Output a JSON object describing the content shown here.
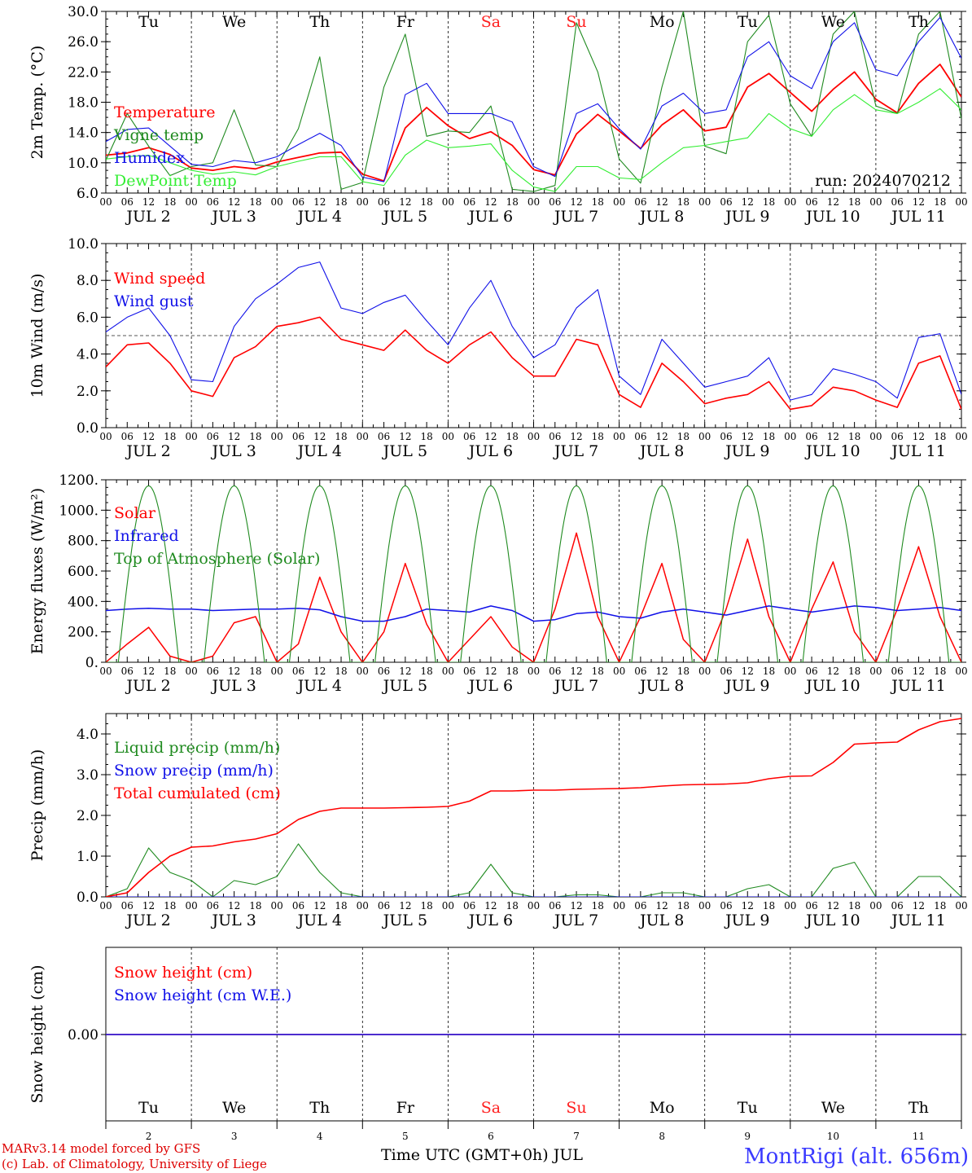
{
  "colors": {
    "red": "#ff0000",
    "green": "#1f8a1f",
    "lightgreen": "#33ee33",
    "blue": "#1010e8",
    "purple": "#8a2be2",
    "weekend": "#ff2020",
    "station": "#3a3aff",
    "credit": "#dd0000"
  },
  "x_axis": {
    "hour_labels": [
      "00",
      "06",
      "12",
      "18"
    ],
    "end_label": "00",
    "day_labels": [
      "JUL  2",
      "JUL  3",
      "JUL  4",
      "JUL  5",
      "JUL  6",
      "JUL  7",
      "JUL  8",
      "JUL  9",
      "JUL 10",
      "JUL 11"
    ],
    "weekdays": [
      "Tu",
      "We",
      "Th",
      "Fr",
      "Sa",
      "Su",
      "Mo",
      "Tu",
      "We",
      "Th"
    ],
    "weekend_flags": [
      false,
      false,
      false,
      false,
      true,
      true,
      false,
      false,
      false,
      false
    ],
    "bottom_day_numbers": [
      "2",
      "3",
      "4",
      "5",
      "6",
      "7",
      "8",
      "9",
      "10",
      "11"
    ],
    "xlabel": "Time UTC (GMT+0h) JUL"
  },
  "footer": {
    "credit_line1": "MARv3.14 model forced by GFS",
    "credit_line2": "(c) Lab. of Climatology, University of Liege",
    "station": "MontRigi (alt. 656m)"
  },
  "chart_data": [
    {
      "type": "line",
      "panel": "temperature",
      "ylabel": "2m Temp. (°C)",
      "ylim": [
        6,
        30
      ],
      "yticks": [
        "6.0",
        "10.0",
        "14.0",
        "18.0",
        "22.0",
        "26.0",
        "30.0"
      ],
      "ytick_values": [
        6,
        10,
        14,
        18,
        22,
        26,
        30
      ],
      "run_label": "run: 2024070212",
      "x_hours": [
        0,
        6,
        12,
        18,
        24,
        30,
        36,
        42,
        48,
        54,
        60,
        66,
        72,
        78,
        84,
        90,
        96,
        102,
        108,
        114,
        120,
        126,
        132,
        138,
        144,
        150,
        156,
        162,
        168,
        174,
        180,
        186,
        192,
        198,
        204,
        210,
        216,
        222,
        228,
        234,
        240
      ],
      "series": [
        {
          "name": "Temperature",
          "color": "red",
          "width": 1.8,
          "values": [
            11.0,
            11.3,
            12.0,
            11.1,
            9.3,
            9.0,
            9.5,
            9.2,
            10.1,
            10.7,
            11.3,
            11.4,
            8.5,
            7.6,
            14.6,
            17.3,
            14.9,
            13.2,
            14.1,
            12.3,
            9.1,
            8.4,
            13.8,
            16.4,
            14.2,
            11.9,
            15.0,
            17.0,
            14.2,
            14.7,
            20.0,
            21.8,
            19.3,
            16.8,
            19.7,
            22.0,
            18.4,
            16.6,
            20.5,
            23.0,
            18.7
          ]
        },
        {
          "name": "Vigne temp",
          "color": "green",
          "width": 1.1,
          "values": [
            10.3,
            16.5,
            12.2,
            8.3,
            9.5,
            10.0,
            17.0,
            9.7,
            9.5,
            14.5,
            24.0,
            6.5,
            7.4,
            20.0,
            27.0,
            13.5,
            14.2,
            14.0,
            17.5,
            6.5,
            6.2,
            7.0,
            28.5,
            22.0,
            10.5,
            7.3,
            20.0,
            30.0,
            12.2,
            11.2,
            26.0,
            29.5,
            17.8,
            13.5,
            27.0,
            30.0,
            17.5,
            16.5,
            27.0,
            30.0,
            15.8
          ]
        },
        {
          "name": "Humidex",
          "color": "blue",
          "width": 1.1,
          "values": [
            12.8,
            14.4,
            14.6,
            12.2,
            9.8,
            9.5,
            10.3,
            10.0,
            10.8,
            12.4,
            13.9,
            12.3,
            8.1,
            7.5,
            19.0,
            20.5,
            16.5,
            16.5,
            16.5,
            15.4,
            9.5,
            8.2,
            16.5,
            17.8,
            14.5,
            11.8,
            17.5,
            19.2,
            16.5,
            17.0,
            24.0,
            26.0,
            21.5,
            19.8,
            26.0,
            28.5,
            22.3,
            21.5,
            26.0,
            29.2,
            23.8
          ]
        },
        {
          "name": "DewPoint Temp",
          "color": "lightgreen",
          "width": 1.1,
          "values": [
            10.5,
            10.8,
            11.0,
            10.0,
            9.0,
            8.5,
            8.8,
            8.4,
            9.5,
            10.2,
            10.8,
            10.8,
            7.5,
            7.0,
            11.0,
            13.0,
            12.0,
            12.2,
            12.5,
            9.0,
            6.8,
            6.2,
            9.5,
            9.5,
            8.0,
            7.8,
            10.0,
            12.0,
            12.3,
            12.8,
            13.3,
            16.5,
            14.5,
            13.5,
            17.0,
            19.0,
            17.0,
            16.5,
            18.0,
            19.8,
            17.0
          ]
        }
      ]
    },
    {
      "type": "line",
      "panel": "wind",
      "ylabel": "10m Wind (m/s)",
      "ylim": [
        0,
        10
      ],
      "yticks": [
        "0.0",
        "2.0",
        "4.0",
        "6.0",
        "8.0",
        "10.0"
      ],
      "ytick_values": [
        0,
        2,
        4,
        6,
        8,
        10
      ],
      "reference_line": 5.0,
      "x_hours": [
        0,
        6,
        12,
        18,
        24,
        30,
        36,
        42,
        48,
        54,
        60,
        66,
        72,
        78,
        84,
        90,
        96,
        102,
        108,
        114,
        120,
        126,
        132,
        138,
        144,
        150,
        156,
        162,
        168,
        174,
        180,
        186,
        192,
        198,
        204,
        210,
        216,
        222,
        228,
        234,
        240
      ],
      "series": [
        {
          "name": "Wind speed",
          "color": "red",
          "width": 1.6,
          "values": [
            3.3,
            4.5,
            4.6,
            3.5,
            2.0,
            1.7,
            3.8,
            4.4,
            5.5,
            5.7,
            6.0,
            4.8,
            4.5,
            4.2,
            5.3,
            4.2,
            3.5,
            4.5,
            5.2,
            3.8,
            2.8,
            2.8,
            4.8,
            4.5,
            1.8,
            1.1,
            3.5,
            2.5,
            1.3,
            1.6,
            1.8,
            2.5,
            1.0,
            1.2,
            2.2,
            2.0,
            1.5,
            1.1,
            3.5,
            3.9,
            1.0
          ]
        },
        {
          "name": "Wind gust",
          "color": "blue",
          "width": 1.1,
          "values": [
            5.2,
            6.0,
            6.5,
            5.0,
            2.6,
            2.5,
            5.5,
            7.0,
            7.8,
            8.7,
            9.0,
            6.5,
            6.2,
            6.8,
            7.2,
            5.8,
            4.5,
            6.5,
            8.0,
            5.5,
            3.8,
            4.5,
            6.5,
            7.5,
            2.8,
            1.8,
            4.8,
            3.5,
            2.2,
            2.5,
            2.8,
            3.8,
            1.5,
            1.8,
            3.2,
            2.9,
            2.5,
            1.6,
            4.9,
            5.1,
            1.8
          ]
        }
      ]
    },
    {
      "type": "line",
      "panel": "energy",
      "ylabel": "Energy fluxes (W/m²)",
      "ylim": [
        0,
        1200
      ],
      "yticks": [
        "0.",
        "200.",
        "400.",
        "600.",
        "800.",
        "1000.",
        "1200."
      ],
      "ytick_values": [
        0,
        200,
        400,
        600,
        800,
        1000,
        1200
      ],
      "x_hours": [
        0,
        6,
        12,
        18,
        24,
        30,
        36,
        42,
        48,
        54,
        60,
        66,
        72,
        78,
        84,
        90,
        96,
        102,
        108,
        114,
        120,
        126,
        132,
        138,
        144,
        150,
        156,
        162,
        168,
        174,
        180,
        186,
        192,
        198,
        204,
        210,
        216,
        222,
        228,
        234,
        240
      ],
      "series": [
        {
          "name": "Solar",
          "color": "red",
          "width": 1.5,
          "values": [
            0,
            120,
            230,
            40,
            0,
            40,
            260,
            300,
            0,
            120,
            560,
            200,
            0,
            200,
            650,
            250,
            0,
            150,
            300,
            100,
            0,
            350,
            850,
            300,
            0,
            300,
            650,
            150,
            0,
            350,
            810,
            300,
            0,
            350,
            660,
            200,
            0,
            350,
            760,
            300,
            0
          ]
        },
        {
          "name": "Infrared",
          "color": "blue",
          "width": 1.5,
          "values": [
            340,
            350,
            355,
            350,
            350,
            340,
            345,
            350,
            350,
            355,
            345,
            300,
            270,
            270,
            300,
            350,
            340,
            330,
            370,
            340,
            270,
            280,
            320,
            330,
            300,
            290,
            330,
            350,
            330,
            310,
            340,
            370,
            350,
            330,
            350,
            370,
            360,
            340,
            350,
            360,
            340
          ]
        },
        {
          "name": "Top of Atmosphere (Solar)",
          "color": "green",
          "width": 1.1,
          "daily_peak": 1160,
          "sunrise_hour": 3.5,
          "sunset_hour": 20.5,
          "values": [
            0,
            700,
            1160,
            700,
            0,
            700,
            1160,
            700,
            0,
            700,
            1160,
            700,
            0,
            700,
            1160,
            700,
            0,
            700,
            1160,
            700,
            0,
            700,
            1160,
            700,
            0,
            700,
            1160,
            700,
            0,
            700,
            1160,
            700,
            0,
            700,
            1160,
            700,
            0,
            700,
            1160,
            700,
            0
          ]
        }
      ]
    },
    {
      "type": "line",
      "panel": "precip",
      "ylabel": "Precip (mm/h)",
      "ylim": [
        0,
        4.5
      ],
      "yticks": [
        "0.0",
        "1.0",
        "2.0",
        "3.0",
        "4.0"
      ],
      "ytick_values": [
        0,
        1,
        2,
        3,
        4
      ],
      "x_hours": [
        0,
        6,
        12,
        18,
        24,
        30,
        36,
        42,
        48,
        54,
        60,
        66,
        72,
        78,
        84,
        90,
        96,
        102,
        108,
        114,
        120,
        126,
        132,
        138,
        144,
        150,
        156,
        162,
        168,
        174,
        180,
        186,
        192,
        198,
        204,
        210,
        216,
        222,
        228,
        234,
        240
      ],
      "series": [
        {
          "name": "Liquid precip (mm/h)",
          "color": "green",
          "width": 1.1,
          "values": [
            0,
            0.2,
            1.2,
            0.6,
            0.4,
            0.0,
            0.4,
            0.3,
            0.5,
            1.3,
            0.6,
            0.1,
            0,
            0,
            0,
            0,
            0,
            0.1,
            0.8,
            0.1,
            0,
            0,
            0.05,
            0.05,
            0,
            0,
            0.1,
            0.1,
            0,
            0,
            0.2,
            0.3,
            0,
            0,
            0.7,
            0.85,
            0,
            0,
            0.5,
            0.5,
            0
          ]
        },
        {
          "name": "Snow precip (mm/h)",
          "color": "blue",
          "width": 1.1,
          "values": [
            0,
            0,
            0,
            0,
            0,
            0,
            0,
            0,
            0,
            0,
            0,
            0,
            0,
            0,
            0,
            0,
            0,
            0,
            0,
            0,
            0,
            0,
            0,
            0,
            0,
            0,
            0,
            0,
            0,
            0,
            0,
            0,
            0,
            0,
            0,
            0,
            0,
            0,
            0,
            0,
            0
          ]
        },
        {
          "name": "Total cumulated (cm)",
          "color": "red",
          "width": 1.6,
          "values": [
            0,
            0.1,
            0.6,
            1.0,
            1.22,
            1.25,
            1.35,
            1.42,
            1.55,
            1.9,
            2.1,
            2.18,
            2.18,
            2.18,
            2.19,
            2.2,
            2.22,
            2.35,
            2.6,
            2.6,
            2.62,
            2.62,
            2.64,
            2.65,
            2.66,
            2.68,
            2.72,
            2.75,
            2.76,
            2.77,
            2.8,
            2.9,
            2.96,
            2.97,
            3.3,
            3.75,
            3.78,
            3.8,
            4.1,
            4.3,
            4.38
          ]
        }
      ]
    },
    {
      "type": "line",
      "panel": "snow",
      "ylabel": "Snow height (cm)",
      "yticks": [
        "0.00"
      ],
      "ytick_values": [
        0
      ],
      "x_hours": [
        0,
        240
      ],
      "series": [
        {
          "name": "Snow height (cm)",
          "color": "red",
          "width": 1.5,
          "values": [
            0,
            0
          ]
        },
        {
          "name": "Snow height (cm W.E.)",
          "color": "blue",
          "width": 1.5,
          "values": [
            0,
            0
          ]
        }
      ]
    }
  ]
}
